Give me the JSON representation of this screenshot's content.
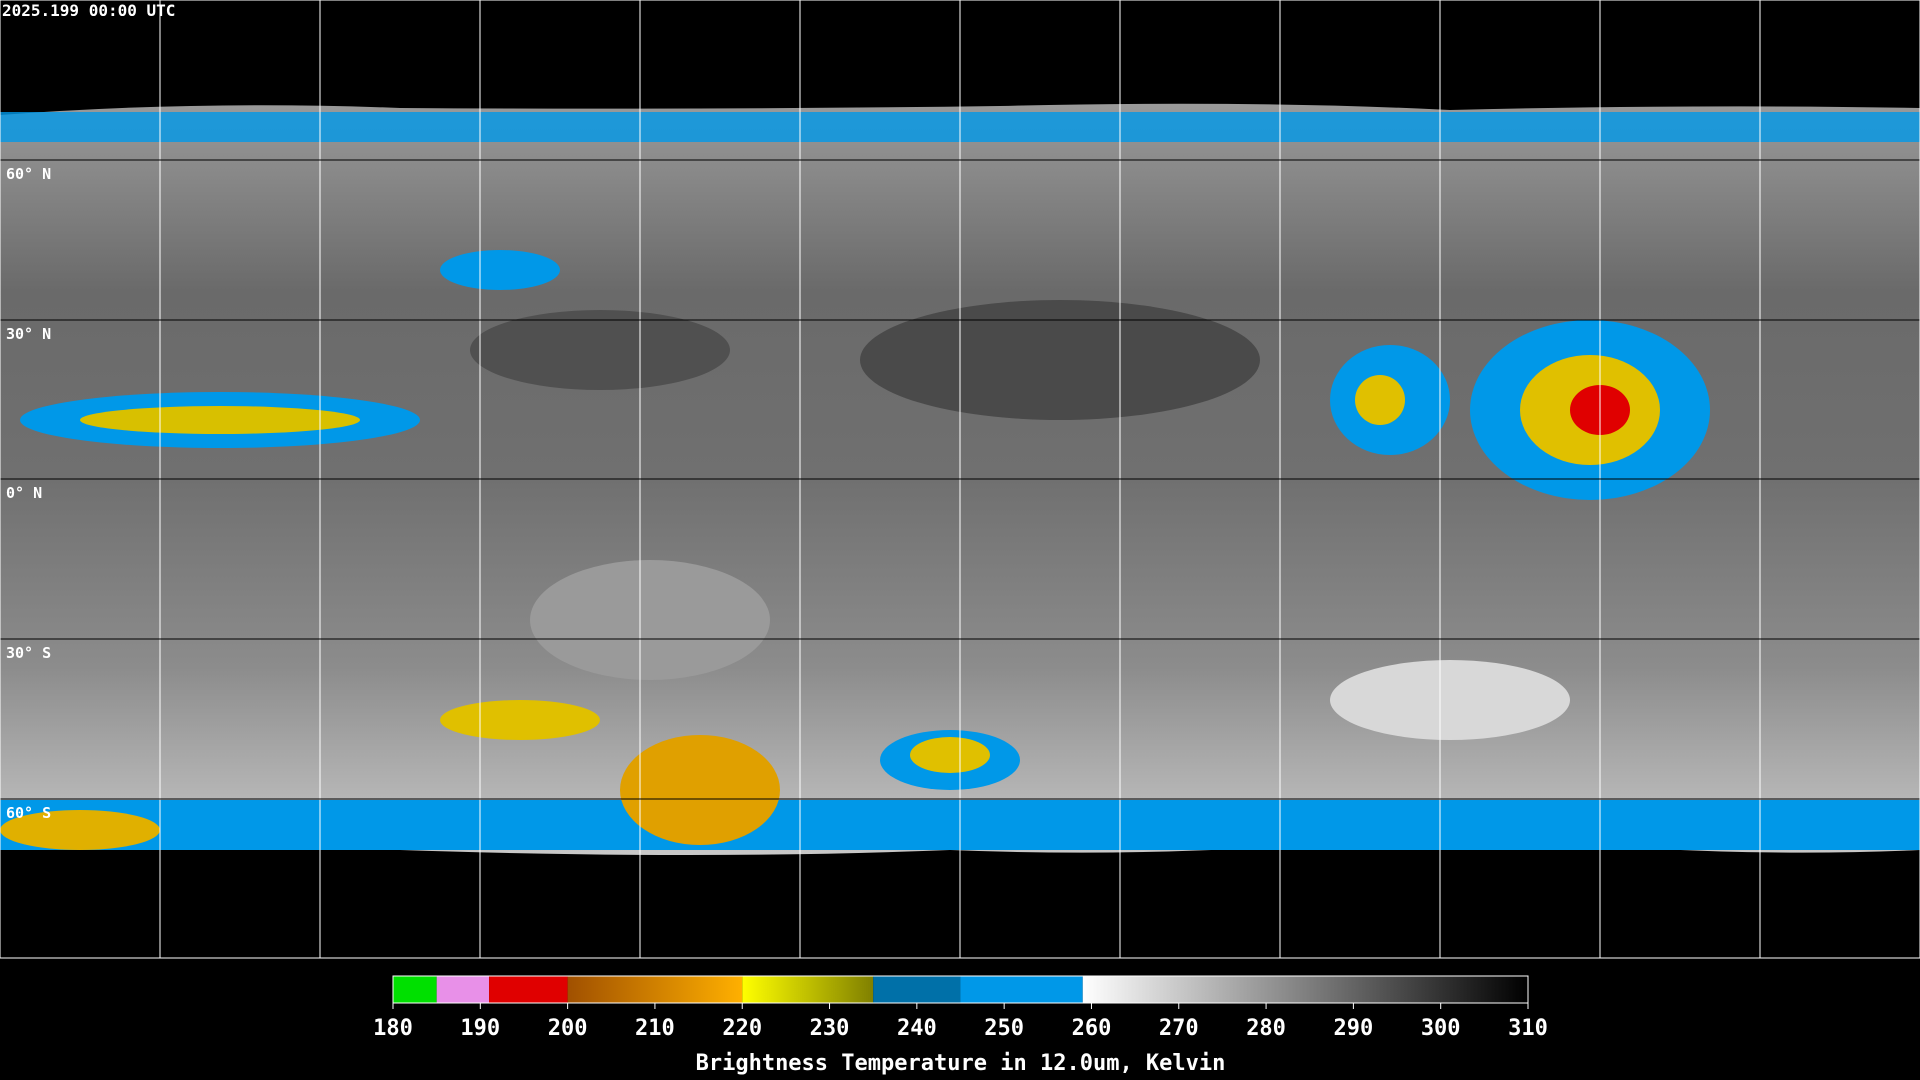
{
  "timestamp": "2025.199 00:00 UTC",
  "lat_labels": [
    "60° N",
    "30° N",
    "0° N",
    "30° S",
    "60° S"
  ],
  "colorbar": {
    "label": "Brightness Temperature in 12.0um, Kelvin",
    "range": [
      180,
      310
    ],
    "ticks": [
      180,
      190,
      200,
      210,
      220,
      230,
      240,
      250,
      260,
      270,
      280,
      290,
      300,
      310
    ],
    "segments": [
      {
        "from": 180,
        "to": 185,
        "colors": [
          "#00e000",
          "#00e000"
        ]
      },
      {
        "from": 185,
        "to": 191,
        "colors": [
          "#e890e8",
          "#e890e8"
        ]
      },
      {
        "from": 191,
        "to": 200,
        "colors": [
          "#e00000",
          "#e00000"
        ]
      },
      {
        "from": 200,
        "to": 220,
        "colors": [
          "#a05000",
          "#ffb000"
        ]
      },
      {
        "from": 220,
        "to": 235,
        "colors": [
          "#ffff00",
          "#808000"
        ]
      },
      {
        "from": 235,
        "to": 245,
        "colors": [
          "#0070a8",
          "#0070a8"
        ]
      },
      {
        "from": 245,
        "to": 259,
        "colors": [
          "#0098e8",
          "#0098e8"
        ]
      },
      {
        "from": 259,
        "to": 310,
        "colors": [
          "#ffffff",
          "#000000"
        ]
      }
    ]
  }
}
